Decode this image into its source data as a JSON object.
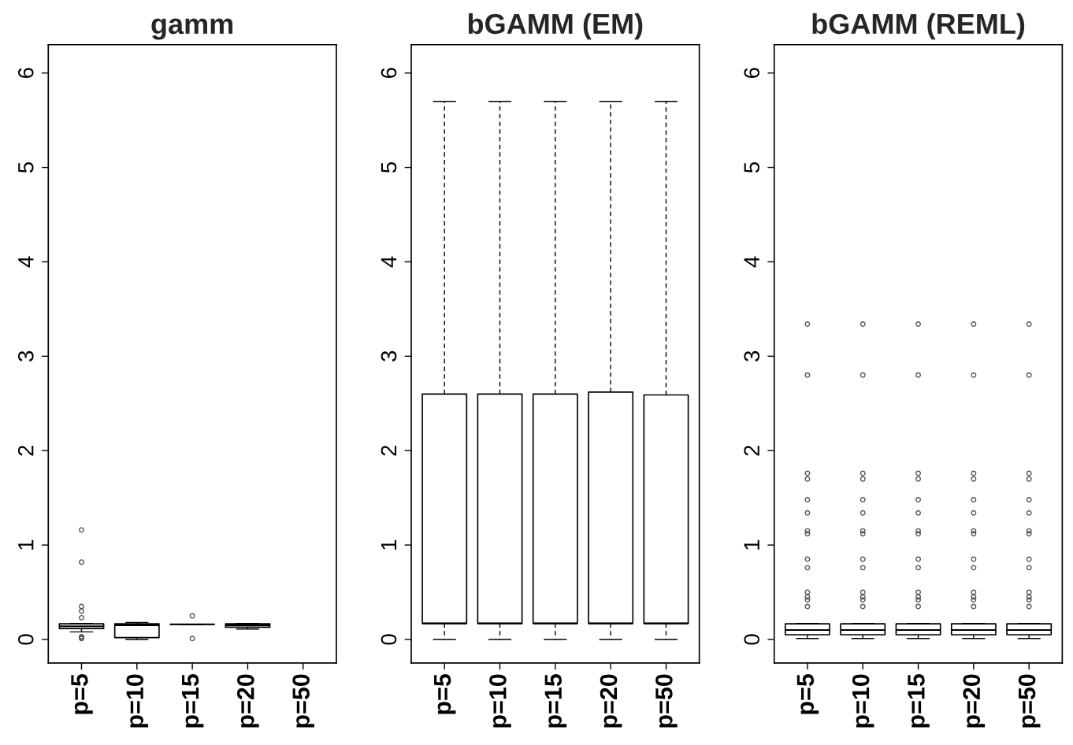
{
  "chart_data": [
    {
      "type": "box",
      "title": "gamm",
      "categories": [
        "p=5",
        "p=10",
        "p=15",
        "p=20",
        "p=50"
      ],
      "ylim": [
        -0.25,
        6.3
      ],
      "yticks": [
        0,
        1,
        2,
        3,
        4,
        5,
        6
      ],
      "grid": false,
      "boxes": [
        {
          "low": 0.08,
          "q1": 0.115,
          "median": 0.14,
          "q3": 0.165,
          "high": 0.17,
          "outliers": [
            1.16,
            0.82,
            0.35,
            0.3,
            0.23,
            0.03,
            0.02,
            0.01
          ]
        },
        {
          "low": 0.0,
          "q1": 0.02,
          "median": 0.15,
          "q3": 0.165,
          "high": 0.18
        },
        {
          "low": 0.16,
          "q1": 0.16,
          "median": 0.16,
          "q3": 0.16,
          "high": 0.16,
          "outliers": [
            0.25,
            0.01
          ]
        },
        {
          "low": 0.11,
          "q1": 0.13,
          "median": 0.15,
          "q3": 0.165,
          "high": 0.17
        },
        null
      ]
    },
    {
      "type": "box",
      "title": "bGAMM (EM)",
      "categories": [
        "p=5",
        "p=10",
        "p=15",
        "p=20",
        "p=50"
      ],
      "ylim": [
        -0.25,
        6.3
      ],
      "yticks": [
        0,
        1,
        2,
        3,
        4,
        5,
        6
      ],
      "grid": false,
      "boxes": [
        {
          "low": 0.0,
          "q1": 0.17,
          "median": 0.17,
          "q3": 2.6,
          "high": 5.7
        },
        {
          "low": 0.0,
          "q1": 0.17,
          "median": 0.17,
          "q3": 2.6,
          "high": 5.7
        },
        {
          "low": 0.0,
          "q1": 0.17,
          "median": 0.17,
          "q3": 2.6,
          "high": 5.7
        },
        {
          "low": 0.0,
          "q1": 0.17,
          "median": 0.17,
          "q3": 2.62,
          "high": 5.7
        },
        {
          "low": 0.0,
          "q1": 0.17,
          "median": 0.17,
          "q3": 2.59,
          "high": 5.7
        }
      ]
    },
    {
      "type": "box",
      "title": "bGAMM (REML)",
      "categories": [
        "p=5",
        "p=10",
        "p=15",
        "p=20",
        "p=50"
      ],
      "ylim": [
        -0.25,
        6.3
      ],
      "yticks": [
        0,
        1,
        2,
        3,
        4,
        5,
        6
      ],
      "grid": false,
      "boxes": [
        {
          "low": 0.01,
          "q1": 0.05,
          "median": 0.1,
          "q3": 0.165,
          "high": 0.17,
          "outliers": [
            3.34,
            2.8,
            1.76,
            1.7,
            1.48,
            1.34,
            1.15,
            1.12,
            0.85,
            0.76,
            0.5,
            0.45,
            0.42,
            0.35
          ]
        },
        {
          "low": 0.01,
          "q1": 0.05,
          "median": 0.1,
          "q3": 0.165,
          "high": 0.17,
          "outliers": [
            3.34,
            2.8,
            1.76,
            1.7,
            1.48,
            1.34,
            1.15,
            1.12,
            0.85,
            0.76,
            0.5,
            0.45,
            0.42,
            0.35
          ]
        },
        {
          "low": 0.01,
          "q1": 0.05,
          "median": 0.1,
          "q3": 0.165,
          "high": 0.17,
          "outliers": [
            3.34,
            2.8,
            1.76,
            1.7,
            1.48,
            1.34,
            1.15,
            1.12,
            0.85,
            0.76,
            0.5,
            0.45,
            0.42,
            0.35
          ]
        },
        {
          "low": 0.01,
          "q1": 0.05,
          "median": 0.1,
          "q3": 0.165,
          "high": 0.17,
          "outliers": [
            3.34,
            2.8,
            1.76,
            1.7,
            1.48,
            1.34,
            1.15,
            1.12,
            0.85,
            0.76,
            0.5,
            0.45,
            0.42,
            0.35
          ]
        },
        {
          "low": 0.01,
          "q1": 0.05,
          "median": 0.1,
          "q3": 0.165,
          "high": 0.17,
          "outliers": [
            3.34,
            2.8,
            1.76,
            1.7,
            1.48,
            1.34,
            1.15,
            1.12,
            0.85,
            0.76,
            0.5,
            0.45,
            0.42,
            0.35
          ]
        }
      ]
    }
  ]
}
